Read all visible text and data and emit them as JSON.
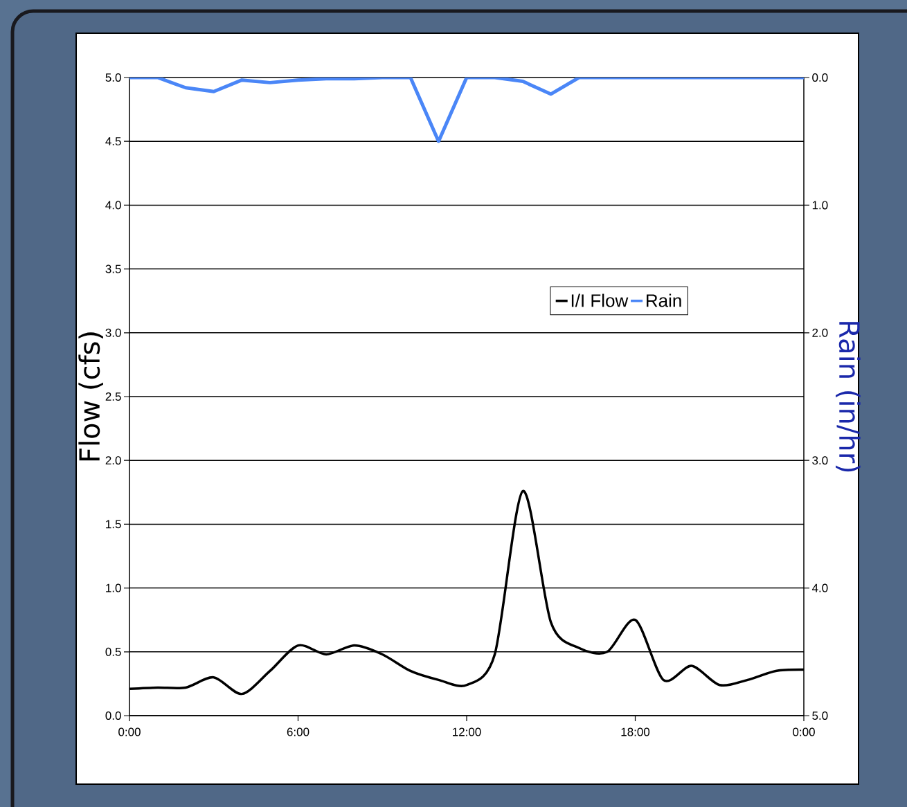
{
  "chart_data": {
    "type": "line",
    "ylabel": "Flow (cfs)",
    "y2label": "Rain (in/hr)",
    "x": [
      0,
      1,
      2,
      3,
      4,
      5,
      6,
      7,
      8,
      9,
      10,
      11,
      12,
      13,
      14,
      15,
      16,
      17,
      18,
      19,
      20,
      21,
      22,
      23,
      24
    ],
    "series": [
      {
        "name": "I/I Flow",
        "color": "#000000",
        "values": [
          0.21,
          0.22,
          0.22,
          0.3,
          0.17,
          0.35,
          0.55,
          0.48,
          0.55,
          0.48,
          0.35,
          0.28,
          0.24,
          0.48,
          1.76,
          0.73,
          0.53,
          0.5,
          0.75,
          0.28,
          0.39,
          0.24,
          0.28,
          0.35,
          0.36
        ]
      },
      {
        "name": "Rain",
        "color": "#4a86f7",
        "axis": "y2",
        "values": [
          0,
          0,
          0.08,
          0.11,
          0.02,
          0.04,
          0.02,
          0.01,
          0.01,
          0,
          0,
          0.5,
          0,
          0,
          0.03,
          0.13,
          0,
          0,
          0,
          0,
          0,
          0,
          0,
          0,
          0
        ]
      }
    ],
    "xlim": [
      0,
      24
    ],
    "xticks": [
      {
        "value": 0,
        "label": "0:00"
      },
      {
        "value": 6,
        "label": "6:00"
      },
      {
        "value": 12,
        "label": "12:00"
      },
      {
        "value": 18,
        "label": "18:00"
      },
      {
        "value": 24,
        "label": "0:00"
      }
    ],
    "ylim": [
      0,
      5
    ],
    "yticks": [
      {
        "value": 0,
        "label": "0.0"
      },
      {
        "value": 0.5,
        "label": "0.5"
      },
      {
        "value": 1,
        "label": "1.0"
      },
      {
        "value": 1.5,
        "label": "1.5"
      },
      {
        "value": 2,
        "label": "2.0"
      },
      {
        "value": 2.5,
        "label": "2.5"
      },
      {
        "value": 3,
        "label": "3.0"
      },
      {
        "value": 3.5,
        "label": "3.5"
      },
      {
        "value": 4,
        "label": "4.0"
      },
      {
        "value": 4.5,
        "label": "4.5"
      },
      {
        "value": 5,
        "label": "5.0"
      }
    ],
    "y2lim": [
      5,
      0
    ],
    "y2ticks": [
      {
        "value": 0,
        "label": "0.0"
      },
      {
        "value": 1,
        "label": "1.0"
      },
      {
        "value": 2,
        "label": "2.0"
      },
      {
        "value": 3,
        "label": "3.0"
      },
      {
        "value": 4,
        "label": "4.0"
      },
      {
        "value": 5,
        "label": "5.0"
      }
    ],
    "grid": "y",
    "legend": "right",
    "marker": "none"
  }
}
